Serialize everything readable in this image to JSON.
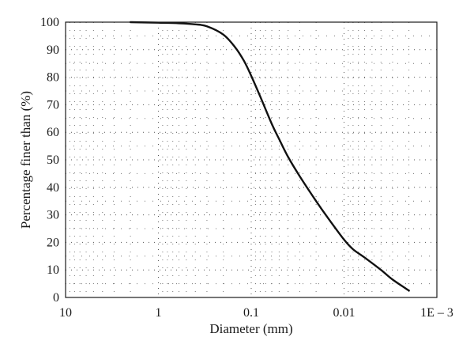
{
  "chart_data": {
    "type": "line",
    "title": "",
    "xlabel": "Diameter (mm)",
    "ylabel": "Percentage finer than (%)",
    "x_scale": "log",
    "x_reversed": true,
    "xlim": [
      10,
      0.001
    ],
    "ylim": [
      0,
      100
    ],
    "grid": true,
    "x_tick_values": [
      10,
      1,
      0.1,
      0.01,
      0.001
    ],
    "x_tick_labels": [
      "10",
      "1",
      "0.1",
      "0.01",
      "1E – 3"
    ],
    "y_tick_values": [
      0,
      10,
      20,
      30,
      40,
      50,
      60,
      70,
      80,
      90,
      100
    ],
    "y_tick_labels": [
      "0",
      "10",
      "20",
      "30",
      "40",
      "50",
      "60",
      "70",
      "80",
      "90",
      "100"
    ],
    "series": [
      {
        "x": [
          2,
          1,
          0.6,
          0.4,
          0.3,
          0.2,
          0.15,
          0.12,
          0.1,
          0.08,
          0.06,
          0.05,
          0.04,
          0.03,
          0.02,
          0.015,
          0.01,
          0.008,
          0.006,
          0.004,
          0.003,
          0.002
        ],
        "y": [
          100,
          99.8,
          99.6,
          99.2,
          98.5,
          95.5,
          91,
          86,
          80.5,
          73,
          63,
          57.5,
          51,
          44,
          35,
          29,
          21,
          17.5,
          14.5,
          10,
          6.5,
          2.5
        ]
      }
    ]
  }
}
